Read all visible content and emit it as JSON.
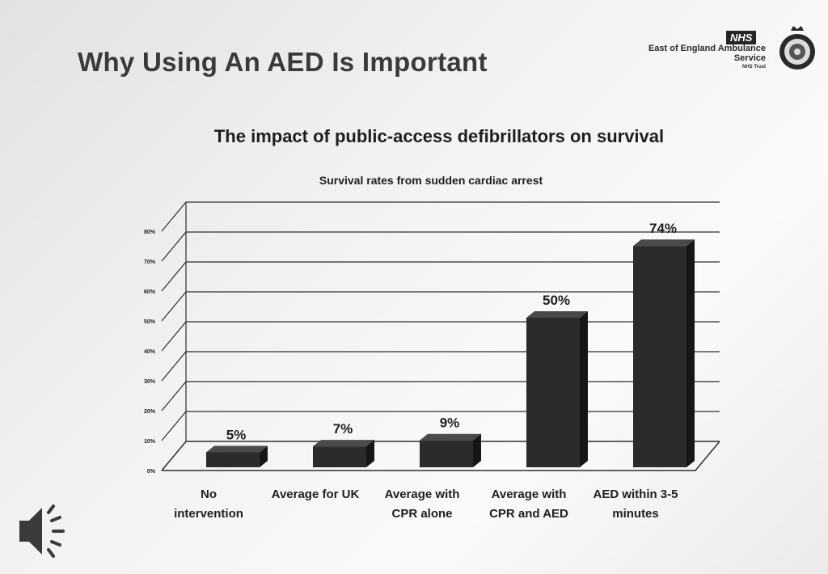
{
  "slide": {
    "title": "Why Using An AED Is Important"
  },
  "logo": {
    "badge": "NHS",
    "org_name": "East of England Ambulance Service",
    "trust": "NHS Trust",
    "crest_icon": "crest-emblem-icon"
  },
  "speaker_icon": "speaker-audio-icon",
  "chart_data": {
    "type": "bar",
    "title": "The impact of public-access defibrillators on survival",
    "subtitle": "Survival rates from sudden cardiac arrest",
    "categories": [
      [
        "No",
        "intervention"
      ],
      [
        "Average for UK"
      ],
      [
        "Average with",
        "CPR alone"
      ],
      [
        "Average with",
        "CPR and AED"
      ],
      [
        "AED within 3-5",
        "minutes"
      ]
    ],
    "values": [
      5,
      7,
      9,
      50,
      74
    ],
    "value_labels": [
      "5%",
      "7%",
      "9%",
      "50%",
      "74%"
    ],
    "ylim": [
      0,
      80
    ],
    "yticks": [
      "0%",
      "10%",
      "20%",
      "30%",
      "40%",
      "50%",
      "60%",
      "70%",
      "80%"
    ],
    "grid": true,
    "bar_color": "#2b2b2b"
  }
}
